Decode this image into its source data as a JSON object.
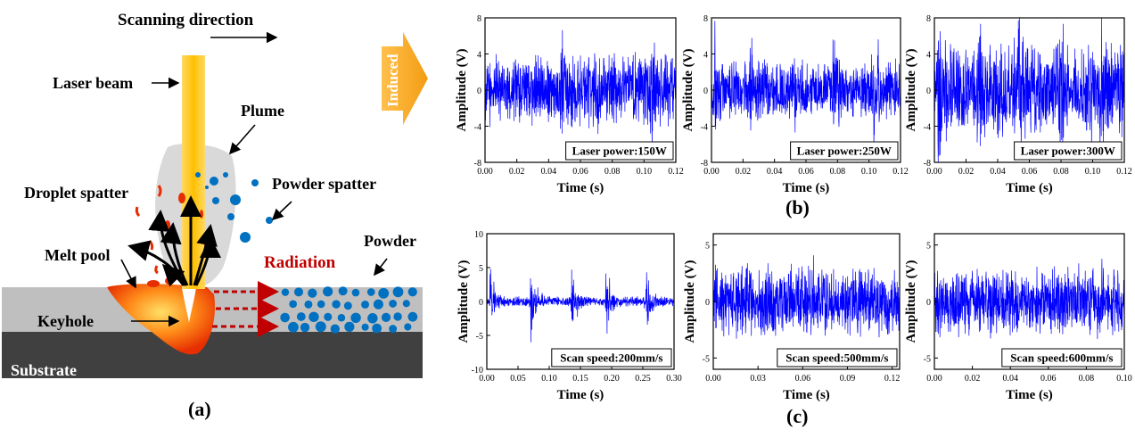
{
  "diagram": {
    "scanning_direction": "Scanning direction",
    "laser_beam": "Laser beam",
    "plume": "Plume",
    "droplet_spatter": "Droplet spatter",
    "powder_spatter": "Powder spatter",
    "melt_pool": "Melt pool",
    "radiation": "Radiation",
    "powder": "Powder",
    "keyhole": "Keyhole",
    "substrate": "Substrate",
    "induced": "Induced",
    "label_a": "(a)",
    "colors": {
      "laser": "#ffc000",
      "radiation": "#c00000",
      "powder_dot": "#0070c0",
      "substrate": "#404040",
      "powder_bed": "#bfbfbf",
      "plume": "#d9d9d9",
      "induced_arrow": "#f5a623"
    }
  },
  "panel_labels": {
    "b": "(b)",
    "c": "(c)"
  },
  "chart_data": [
    {
      "type": "line",
      "group": "b",
      "legend": "Laser power:150W",
      "xlabel": "Time (s)",
      "ylabel": "Amplitude (V)",
      "xlim": [
        0,
        0.12
      ],
      "ylim": [
        -8,
        8
      ],
      "xticks": [
        "0.00",
        "0.02",
        "0.04",
        "0.06",
        "0.08",
        "0.10",
        "0.12"
      ],
      "yticks": [
        "8",
        "4",
        "0",
        "-4",
        "-8"
      ],
      "series": [
        {
          "values_description": "noise",
          "amplitude_envelope": 4.5,
          "bursts_at": [
            0.047,
            0.104
          ]
        }
      ],
      "color": "#0000ff"
    },
    {
      "type": "line",
      "group": "b",
      "legend": "Laser power:250W",
      "xlabel": "Time (s)",
      "ylabel": "Amplitude (V)",
      "xlim": [
        0,
        0.12
      ],
      "ylim": [
        -8,
        8
      ],
      "xticks": [
        "0.00",
        "0.02",
        "0.04",
        "0.06",
        "0.08",
        "0.10",
        "0.12"
      ],
      "yticks": [
        "8",
        "4",
        "0",
        "-4",
        "-8"
      ],
      "series": [
        {
          "amplitude_envelope": 3.5,
          "bursts_at": [
            0.002,
            0.024,
            0.051,
            0.077,
            0.103
          ]
        }
      ],
      "color": "#0000ff"
    },
    {
      "type": "line",
      "group": "b",
      "legend": "Laser power:300W",
      "xlabel": "Time (s)",
      "ylabel": "Amplitude (V)",
      "xlim": [
        0,
        0.12
      ],
      "ylim": [
        -8,
        8
      ],
      "xticks": [
        "0.00",
        "0.02",
        "0.04",
        "0.06",
        "0.08",
        "0.10",
        "0.12"
      ],
      "yticks": [
        "8",
        "4",
        "0",
        "-4",
        "-8"
      ],
      "series": [
        {
          "amplitude_envelope": 5.5,
          "bursts_at": [
            0.002,
            0.027,
            0.053,
            0.079,
            0.104
          ]
        }
      ],
      "color": "#0000ff"
    },
    {
      "type": "line",
      "group": "c",
      "legend": "Scan speed:200mm/s",
      "xlabel": "Time (s)",
      "ylabel": "Amplitude (V)",
      "xlim": [
        0,
        0.3
      ],
      "ylim": [
        -10,
        10
      ],
      "xticks": [
        "0.00",
        "0.05",
        "0.10",
        "0.15",
        "0.20",
        "0.25",
        "0.30"
      ],
      "yticks": [
        "10",
        "5",
        "0",
        "-5",
        "-10"
      ],
      "series": [
        {
          "amplitude_envelope": 0.8,
          "bursts_at": [
            0.005,
            0.07,
            0.135,
            0.19,
            0.255
          ]
        }
      ],
      "color": "#0000ff"
    },
    {
      "type": "line",
      "group": "c",
      "legend": "Scan speed:500mm/s",
      "xlabel": "Time (s)",
      "ylabel": "Amplitude (V)",
      "xlim": [
        0,
        0.125
      ],
      "ylim": [
        -6,
        6
      ],
      "xticks": [
        "0.00",
        "0.03",
        "0.06",
        "0.09",
        "0.12"
      ],
      "yticks": [
        "5",
        "0",
        "-5"
      ],
      "series": [
        {
          "amplitude_envelope": 3.5,
          "bursts_at": []
        }
      ],
      "color": "#0000ff"
    },
    {
      "type": "line",
      "group": "c",
      "legend": "Scan speed:600mm/s",
      "xlabel": "Time (s)",
      "ylabel": "Amplitude (V)",
      "xlim": [
        0,
        0.1
      ],
      "ylim": [
        -6,
        6
      ],
      "xticks": [
        "0.00",
        "0.02",
        "0.04",
        "0.06",
        "0.08",
        "0.10"
      ],
      "yticks": [
        "5",
        "0",
        "-5"
      ],
      "series": [
        {
          "amplitude_envelope": 3.5,
          "bursts_at": []
        }
      ],
      "color": "#0000ff"
    }
  ]
}
